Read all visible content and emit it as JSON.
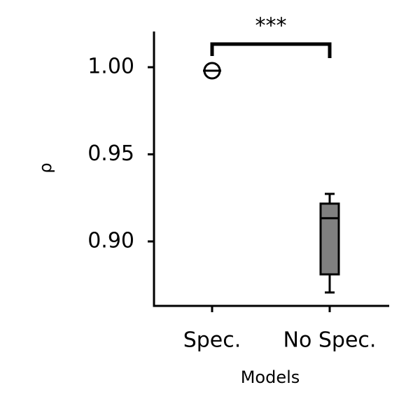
{
  "chart_data": {
    "type": "box",
    "y_label": "ρ",
    "x_label": "Models",
    "categories": [
      "Spec.",
      "No Spec."
    ],
    "boxes": [
      {
        "whislo": 0.998,
        "q1": 0.998,
        "med": 0.998,
        "q3": 0.998,
        "whishi": 0.998,
        "fliers": [
          0.998
        ]
      },
      {
        "whislo": 0.8707,
        "q1": 0.8811,
        "med": 0.9133,
        "q3": 0.9217,
        "whishi": 0.9273,
        "fliers": []
      }
    ],
    "color": "#808080",
    "ylim": [
      0.863,
      1.0205
    ],
    "yticks": [
      {
        "value": 0.9,
        "label": "0.90"
      },
      {
        "value": 0.95,
        "label": "0.95"
      },
      {
        "value": 1.0,
        "label": "1.00"
      }
    ],
    "significance": "***"
  }
}
